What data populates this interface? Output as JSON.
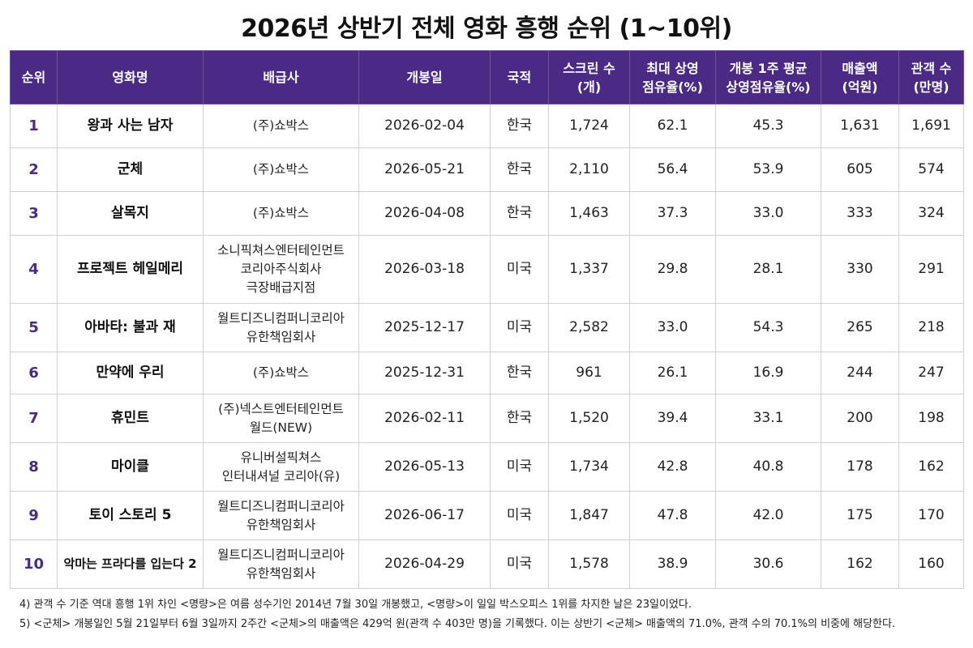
{
  "title": "2026년 상반기 전체 영화 흥행 순위 (1~10위)",
  "table": {
    "headers": [
      [
        "순위"
      ],
      [
        "영화명"
      ],
      [
        "배급사"
      ],
      [
        "개봉일"
      ],
      [
        "국적"
      ],
      [
        "스크린 수",
        "(개)"
      ],
      [
        "최대 상영",
        "점유율(%)"
      ],
      [
        "개봉 1주 평균",
        "상영점유율(%)"
      ],
      [
        "매출액",
        "(억원)"
      ],
      [
        "관객 수",
        "(만명)"
      ]
    ],
    "rows": [
      {
        "rank": "1",
        "movie": "왕과 사는 남자",
        "distributor": [
          "(주)쇼박스"
        ],
        "release": "2026-02-04",
        "country": "한국",
        "screens": "1,724",
        "max_share": "62.1",
        "week1_share": "45.3",
        "revenue": "1,631",
        "audience": "1,691"
      },
      {
        "rank": "2",
        "movie": "군체",
        "distributor": [
          "(주)쇼박스"
        ],
        "release": "2026-05-21",
        "country": "한국",
        "screens": "2,110",
        "max_share": "56.4",
        "week1_share": "53.9",
        "revenue": "605",
        "audience": "574"
      },
      {
        "rank": "3",
        "movie": "살목지",
        "distributor": [
          "(주)쇼박스"
        ],
        "release": "2026-04-08",
        "country": "한국",
        "screens": "1,463",
        "max_share": "37.3",
        "week1_share": "33.0",
        "revenue": "333",
        "audience": "324"
      },
      {
        "rank": "4",
        "movie": "프로젝트 헤일메리",
        "distributor": [
          "소니픽쳐스엔터테인먼트",
          "코리아주식회사",
          "극장배급지점"
        ],
        "release": "2026-03-18",
        "country": "미국",
        "screens": "1,337",
        "max_share": "29.8",
        "week1_share": "28.1",
        "revenue": "330",
        "audience": "291"
      },
      {
        "rank": "5",
        "movie": "아바타: 불과 재",
        "distributor": [
          "월트디즈니컴퍼니코리아",
          "유한책임회사"
        ],
        "release": "2025-12-17",
        "country": "미국",
        "screens": "2,582",
        "max_share": "33.0",
        "week1_share": "54.3",
        "revenue": "265",
        "audience": "218"
      },
      {
        "rank": "6",
        "movie": "만약에 우리",
        "distributor": [
          "(주)쇼박스"
        ],
        "release": "2025-12-31",
        "country": "한국",
        "screens": "961",
        "max_share": "26.1",
        "week1_share": "16.9",
        "revenue": "244",
        "audience": "247"
      },
      {
        "rank": "7",
        "movie": "휴민트",
        "distributor": [
          "(주)넥스트엔터테인먼트",
          "월드(NEW)"
        ],
        "release": "2026-02-11",
        "country": "한국",
        "screens": "1,520",
        "max_share": "39.4",
        "week1_share": "33.1",
        "revenue": "200",
        "audience": "198"
      },
      {
        "rank": "8",
        "movie": "마이클",
        "distributor": [
          "유니버설픽쳐스",
          "인터내셔널 코리아(유)"
        ],
        "release": "2026-05-13",
        "country": "미국",
        "screens": "1,734",
        "max_share": "42.8",
        "week1_share": "40.8",
        "revenue": "178",
        "audience": "162"
      },
      {
        "rank": "9",
        "movie": "토이 스토리 5",
        "distributor": [
          "월트디즈니컴퍼니코리아",
          "유한책임회사"
        ],
        "release": "2026-06-17",
        "country": "미국",
        "screens": "1,847",
        "max_share": "47.8",
        "week1_share": "42.0",
        "revenue": "175",
        "audience": "170"
      },
      {
        "rank": "10",
        "movie": "악마는 프라다를 입는다 2",
        "distributor": [
          "월트디즈니컴퍼니코리아",
          "유한책임회사"
        ],
        "release": "2026-04-29",
        "country": "미국",
        "screens": "1,578",
        "max_share": "38.9",
        "week1_share": "30.6",
        "revenue": "162",
        "audience": "160"
      }
    ]
  },
  "notes": [
    "4) 관객 수 기준 역대 흥행 1위 차인 <명량>은 여름 성수기인 2014년 7월 30일 개봉했고, <명량>이 일일 박스오피스 1위를 차지한 날은 23일이었다.",
    "5) <군체> 개봉일인 5월 21일부터 6월 3일까지 2주간 <군체>의 매출액은 429억 원(관객 수 403만 명)을 기록했다. 이는 상반기 <군체> 매출액의 71.0%, 관객 수의 70.1%의 비중에 해당한다."
  ],
  "colors": {
    "header_bg": "#4b2a86",
    "header_text": "#ffffff",
    "rank_text": "#4b2a86",
    "grid": "#cfcfd6"
  }
}
